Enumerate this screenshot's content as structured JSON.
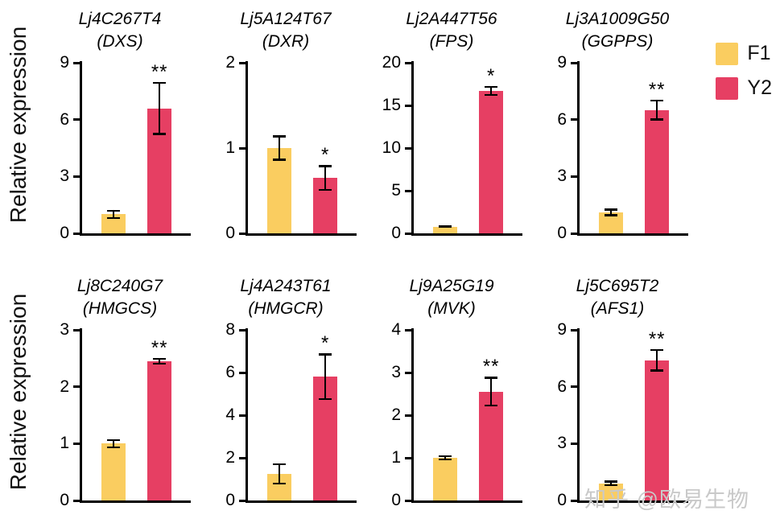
{
  "ylabel": "Relative expression",
  "watermark": "知乎 @欧易生物",
  "legend": {
    "position": "top-right",
    "entries": [
      {
        "label": "F1",
        "color": "#FACD60"
      },
      {
        "label": "Y2",
        "color": "#E63F63"
      }
    ]
  },
  "chart_data": [
    {
      "type": "bar",
      "title": "Lj4C267T4",
      "subtitle": "(DXS)",
      "categories": [
        "F1",
        "Y2"
      ],
      "values": [
        1.0,
        6.6
      ],
      "errors": [
        0.25,
        1.4
      ],
      "significance": [
        "",
        "**"
      ],
      "ylim": [
        0,
        9
      ],
      "yticks": [
        0,
        3,
        6,
        9
      ],
      "ylabel": "Relative expression"
    },
    {
      "type": "bar",
      "title": "Lj5A124T67",
      "subtitle": "(DXR)",
      "categories": [
        "F1",
        "Y2"
      ],
      "values": [
        1.0,
        0.65
      ],
      "errors": [
        0.15,
        0.15
      ],
      "significance": [
        "",
        "*"
      ],
      "ylim": [
        0,
        2
      ],
      "yticks": [
        0,
        1,
        2
      ],
      "ylabel": "Relative expression"
    },
    {
      "type": "bar",
      "title": "Lj2A447T56",
      "subtitle": "(FPS)",
      "categories": [
        "F1",
        "Y2"
      ],
      "values": [
        0.8,
        16.7
      ],
      "errors": [
        0.12,
        0.6
      ],
      "significance": [
        "",
        "*"
      ],
      "ylim": [
        0,
        20
      ],
      "yticks": [
        0,
        5,
        10,
        15,
        20
      ],
      "ylabel": "Relative expression"
    },
    {
      "type": "bar",
      "title": "Lj3A1009G50",
      "subtitle": "(GGPPS)",
      "categories": [
        "F1",
        "Y2"
      ],
      "values": [
        1.1,
        6.5
      ],
      "errors": [
        0.2,
        0.55
      ],
      "significance": [
        "",
        "**"
      ],
      "ylim": [
        0,
        9
      ],
      "yticks": [
        0,
        3,
        6,
        9
      ],
      "ylabel": "Relative expression"
    },
    {
      "type": "bar",
      "title": "Lj8C240G7",
      "subtitle": "(HMGCS)",
      "categories": [
        "F1",
        "Y2"
      ],
      "values": [
        1.0,
        2.45
      ],
      "errors": [
        0.08,
        0.06
      ],
      "significance": [
        "",
        "**"
      ],
      "ylim": [
        0,
        3
      ],
      "yticks": [
        0,
        1,
        2,
        3
      ],
      "ylabel": "Relative expression"
    },
    {
      "type": "bar",
      "title": "Lj4A243T61",
      "subtitle": "(HMGCR)",
      "categories": [
        "F1",
        "Y2"
      ],
      "values": [
        1.25,
        5.8
      ],
      "errors": [
        0.5,
        1.1
      ],
      "significance": [
        "",
        "*"
      ],
      "ylim": [
        0,
        8
      ],
      "yticks": [
        0,
        2,
        4,
        6,
        8
      ],
      "ylabel": "Relative expression"
    },
    {
      "type": "bar",
      "title": "Lj9A25G19",
      "subtitle": "(MVK)",
      "categories": [
        "F1",
        "Y2"
      ],
      "values": [
        1.0,
        2.55
      ],
      "errors": [
        0.06,
        0.35
      ],
      "significance": [
        "",
        "**"
      ],
      "ylim": [
        0,
        4
      ],
      "yticks": [
        0,
        1,
        2,
        3,
        4
      ],
      "ylabel": "Relative expression"
    },
    {
      "type": "bar",
      "title": "Lj5C695T2",
      "subtitle": "(AFS1)",
      "categories": [
        "F1",
        "Y2"
      ],
      "values": [
        0.9,
        7.4
      ],
      "errors": [
        0.15,
        0.6
      ],
      "significance": [
        "",
        "**"
      ],
      "ylim": [
        0,
        9
      ],
      "yticks": [
        0,
        3,
        6,
        9
      ],
      "ylabel": "Relative expression"
    }
  ]
}
